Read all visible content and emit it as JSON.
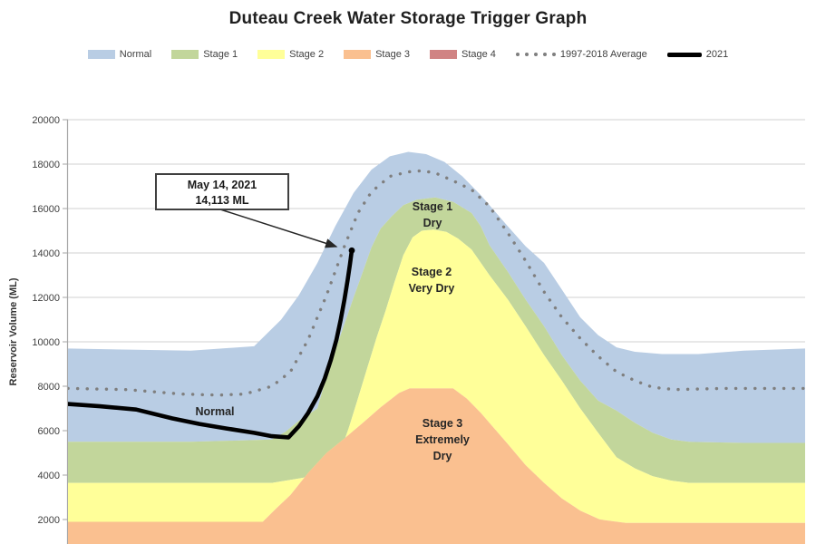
{
  "title": "Duteau Creek Water Storage Trigger Graph",
  "legend": {
    "items": [
      {
        "label": "Normal",
        "swatch": "rect",
        "color": "#b9cde4"
      },
      {
        "label": "Stage 1",
        "swatch": "rect",
        "color": "#c2d69b"
      },
      {
        "label": "Stage 2",
        "swatch": "rect",
        "color": "#ffff99"
      },
      {
        "label": "Stage 3",
        "swatch": "rect",
        "color": "#fac090"
      },
      {
        "label": "Stage 4",
        "swatch": "rect",
        "color": "#d08383"
      },
      {
        "label": "1997-2018 Average",
        "swatch": "dots",
        "color": "#7f7f7f"
      },
      {
        "label": "2021",
        "swatch": "line",
        "color": "#000000"
      }
    ]
  },
  "y_axis": {
    "title": "Reservoir Volume (ML)",
    "ticks": [
      20000,
      18000,
      16000,
      14000,
      12000,
      10000,
      8000,
      6000,
      4000,
      2000
    ]
  },
  "annotation": {
    "line1": "May 14, 2021",
    "line2": "14,113 ML"
  },
  "region_labels": {
    "normal": [
      "Normal"
    ],
    "stage1": [
      "Stage 1",
      "Dry"
    ],
    "stage2": [
      "Stage 2",
      "Very Dry"
    ],
    "stage3": [
      "Stage 3",
      "Extremely",
      "Dry"
    ]
  },
  "colors": {
    "normal": "#b9cde4",
    "stage1": "#c2d69b",
    "stage2": "#ffff99",
    "stage3": "#fac090",
    "stage4": "#d08383",
    "average_line": "#7f7f7f",
    "line_2021": "#000000",
    "gridline": "#d2d2d2",
    "axis": "#a6a6a6",
    "tick_text": "#404040"
  },
  "chart_data": {
    "type": "area",
    "title": "Duteau Creek Water Storage Trigger Graph",
    "ylabel": "Reservoir Volume (ML)",
    "x_unit": "month index (0 = start of Jan, 12 = end of Dec); x-axis labels cut off in image",
    "y_unit": "ML",
    "y_ticks": [
      2000,
      4000,
      6000,
      8000,
      10000,
      12000,
      14000,
      16000,
      18000,
      20000
    ],
    "y_visible_range": [
      900,
      20000
    ],
    "grid": "horizontal",
    "legend_position": "top",
    "stacked_bands": [
      {
        "name": "Normal",
        "label": "Normal",
        "color": "#b9cde4",
        "upper": [
          [
            0,
            9700
          ],
          [
            1,
            9650
          ],
          [
            2,
            9600
          ],
          [
            3.03,
            9800
          ],
          [
            3.47,
            11000
          ],
          [
            3.76,
            12100
          ],
          [
            4.06,
            13550
          ],
          [
            4.35,
            15200
          ],
          [
            4.65,
            16700
          ],
          [
            4.94,
            17750
          ],
          [
            5.24,
            18350
          ],
          [
            5.54,
            18550
          ],
          [
            5.83,
            18450
          ],
          [
            6.13,
            18100
          ],
          [
            6.42,
            17450
          ],
          [
            6.72,
            16600
          ],
          [
            7.16,
            15200
          ],
          [
            7.45,
            14300
          ],
          [
            7.75,
            13550
          ],
          [
            8.04,
            12350
          ],
          [
            8.34,
            11100
          ],
          [
            8.63,
            10300
          ],
          [
            8.93,
            9750
          ],
          [
            9.23,
            9550
          ],
          [
            9.67,
            9450
          ],
          [
            10.26,
            9450
          ],
          [
            11,
            9600
          ],
          [
            12,
            9700
          ]
        ]
      },
      {
        "name": "Stage 1",
        "label": "Stage 1 Dry",
        "color": "#c2d69b",
        "upper": [
          [
            0,
            5500
          ],
          [
            1.99,
            5500
          ],
          [
            3.32,
            5600
          ],
          [
            3.54,
            5950
          ],
          [
            3.76,
            6450
          ],
          [
            4.06,
            7000
          ],
          [
            4.21,
            8450
          ],
          [
            4.35,
            9600
          ],
          [
            4.5,
            10800
          ],
          [
            4.65,
            12000
          ],
          [
            4.8,
            13150
          ],
          [
            4.94,
            14250
          ],
          [
            5.09,
            15100
          ],
          [
            5.27,
            15650
          ],
          [
            5.46,
            16150
          ],
          [
            5.68,
            16400
          ],
          [
            5.98,
            16500
          ],
          [
            6.27,
            16300
          ],
          [
            6.57,
            15800
          ],
          [
            6.72,
            15200
          ],
          [
            6.86,
            14350
          ],
          [
            7.16,
            13150
          ],
          [
            7.45,
            11900
          ],
          [
            7.75,
            10700
          ],
          [
            8.04,
            9400
          ],
          [
            8.34,
            8250
          ],
          [
            8.63,
            7350
          ],
          [
            8.93,
            6900
          ],
          [
            9.23,
            6350
          ],
          [
            9.52,
            5900
          ],
          [
            9.82,
            5600
          ],
          [
            10.11,
            5500
          ],
          [
            11,
            5450
          ],
          [
            12,
            5450
          ]
        ]
      },
      {
        "name": "Stage 2",
        "label": "Stage 2 Very Dry",
        "color": "#ffff99",
        "upper": [
          [
            0,
            3650
          ],
          [
            3.32,
            3650
          ],
          [
            3.76,
            3850
          ],
          [
            4.06,
            4000
          ],
          [
            4.28,
            4400
          ],
          [
            4.43,
            5000
          ],
          [
            4.58,
            6200
          ],
          [
            4.72,
            7450
          ],
          [
            4.87,
            8800
          ],
          [
            5.02,
            10150
          ],
          [
            5.17,
            11400
          ],
          [
            5.31,
            12650
          ],
          [
            5.46,
            13900
          ],
          [
            5.61,
            14700
          ],
          [
            5.76,
            15000
          ],
          [
            5.95,
            15050
          ],
          [
            6.16,
            14950
          ],
          [
            6.35,
            14650
          ],
          [
            6.57,
            14150
          ],
          [
            6.86,
            13000
          ],
          [
            7.16,
            11900
          ],
          [
            7.45,
            10700
          ],
          [
            7.75,
            9400
          ],
          [
            8.04,
            8250
          ],
          [
            8.34,
            7000
          ],
          [
            8.63,
            5900
          ],
          [
            8.93,
            4800
          ],
          [
            9.23,
            4300
          ],
          [
            9.52,
            3950
          ],
          [
            9.82,
            3750
          ],
          [
            10.11,
            3650
          ],
          [
            12,
            3650
          ]
        ]
      },
      {
        "name": "Stage 3",
        "label": "Stage 3 Extremely Dry",
        "color": "#fac090",
        "upper": [
          [
            0,
            1900
          ],
          [
            3.17,
            1900
          ],
          [
            3.39,
            2500
          ],
          [
            3.62,
            3100
          ],
          [
            3.91,
            4100
          ],
          [
            4.21,
            5000
          ],
          [
            4.5,
            5650
          ],
          [
            4.8,
            6350
          ],
          [
            5.09,
            7050
          ],
          [
            5.39,
            7700
          ],
          [
            5.56,
            7900
          ],
          [
            6.27,
            7900
          ],
          [
            6.49,
            7450
          ],
          [
            6.72,
            6800
          ],
          [
            6.94,
            6100
          ],
          [
            7.16,
            5400
          ],
          [
            7.45,
            4450
          ],
          [
            7.75,
            3650
          ],
          [
            8.04,
            2950
          ],
          [
            8.34,
            2400
          ],
          [
            8.66,
            2000
          ],
          [
            9.08,
            1850
          ],
          [
            12,
            1850
          ]
        ]
      }
    ],
    "note": "Stage 4 appears in the legend only; its band lies below the visible plot area.",
    "lines": [
      {
        "name": "1997-2018 Average",
        "style": "dotted",
        "color": "#7f7f7f",
        "points": [
          [
            0,
            7900
          ],
          [
            0.96,
            7850
          ],
          [
            1.85,
            7650
          ],
          [
            2.44,
            7600
          ],
          [
            2.88,
            7650
          ],
          [
            3.32,
            8000
          ],
          [
            3.62,
            8650
          ],
          [
            3.91,
            10100
          ],
          [
            4.21,
            12100
          ],
          [
            4.5,
            14300
          ],
          [
            4.72,
            15800
          ],
          [
            4.94,
            16750
          ],
          [
            5.24,
            17450
          ],
          [
            5.54,
            17650
          ],
          [
            5.76,
            17700
          ],
          [
            5.98,
            17600
          ],
          [
            6.27,
            17250
          ],
          [
            6.57,
            16850
          ],
          [
            6.86,
            16100
          ],
          [
            7.16,
            14900
          ],
          [
            7.45,
            13650
          ],
          [
            7.75,
            12250
          ],
          [
            8.04,
            11100
          ],
          [
            8.34,
            10150
          ],
          [
            8.63,
            9350
          ],
          [
            8.93,
            8650
          ],
          [
            9.23,
            8250
          ],
          [
            9.52,
            7950
          ],
          [
            9.89,
            7850
          ],
          [
            10.7,
            7900
          ],
          [
            12,
            7900
          ]
        ]
      },
      {
        "name": "2021",
        "style": "solid",
        "color": "#000000",
        "end_marker": true,
        "points": [
          [
            0,
            7200
          ],
          [
            0.52,
            7100
          ],
          [
            1.11,
            6950
          ],
          [
            1.7,
            6550
          ],
          [
            2.14,
            6300
          ],
          [
            2.58,
            6100
          ],
          [
            3.03,
            5900
          ],
          [
            3.32,
            5750
          ],
          [
            3.59,
            5700
          ],
          [
            3.76,
            6200
          ],
          [
            3.91,
            6800
          ],
          [
            4.06,
            7550
          ],
          [
            4.18,
            8350
          ],
          [
            4.28,
            9200
          ],
          [
            4.37,
            10100
          ],
          [
            4.44,
            11000
          ],
          [
            4.5,
            11900
          ],
          [
            4.55,
            12750
          ],
          [
            4.59,
            13500
          ],
          [
            4.62,
            14113
          ]
        ]
      }
    ],
    "annotation": {
      "text": "May 14, 2021 / 14,113 ML",
      "x_month": 4.62,
      "value": 14113
    }
  }
}
